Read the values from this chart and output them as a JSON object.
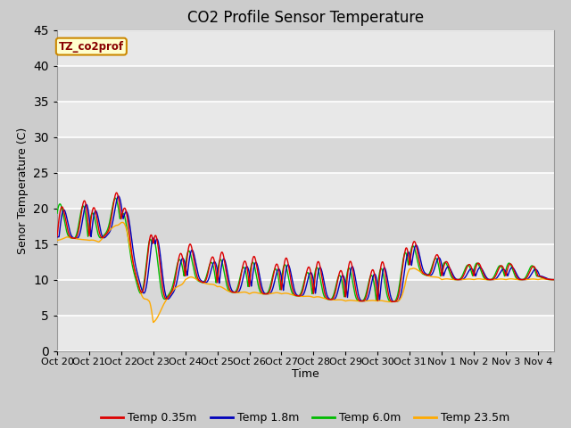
{
  "title": "CO2 Profile Sensor Temperature",
  "xlabel": "Time",
  "ylabel": "Senor Temperature (C)",
  "ylim": [
    0,
    45
  ],
  "xlim_days": 15.5,
  "annotation_text": "TZ_co2prof",
  "annotation_bg": "#ffffcc",
  "annotation_border": "#cc8800",
  "fig_bg": "#cccccc",
  "plot_bg_light": "#e8e8e8",
  "plot_bg_dark": "#d8d8d8",
  "series": [
    {
      "label": "Temp 0.35m",
      "color": "#dd0000"
    },
    {
      "label": "Temp 1.8m",
      "color": "#0000bb"
    },
    {
      "label": "Temp 6.0m",
      "color": "#00bb00"
    },
    {
      "label": "Temp 23.5m",
      "color": "#ffaa00"
    }
  ],
  "tick_labels": [
    "Oct 20",
    "Oct 21",
    "Oct 22",
    "Oct 23",
    "Oct 24",
    "Oct 25",
    "Oct 26",
    "Oct 27",
    "Oct 28",
    "Oct 29",
    "Oct 30",
    "Oct 31",
    "Nov 1",
    "Nov 2",
    "Nov 3",
    "Nov 4"
  ],
  "title_fontsize": 12,
  "axis_fontsize": 9,
  "tick_fontsize": 8,
  "legend_fontsize": 9
}
